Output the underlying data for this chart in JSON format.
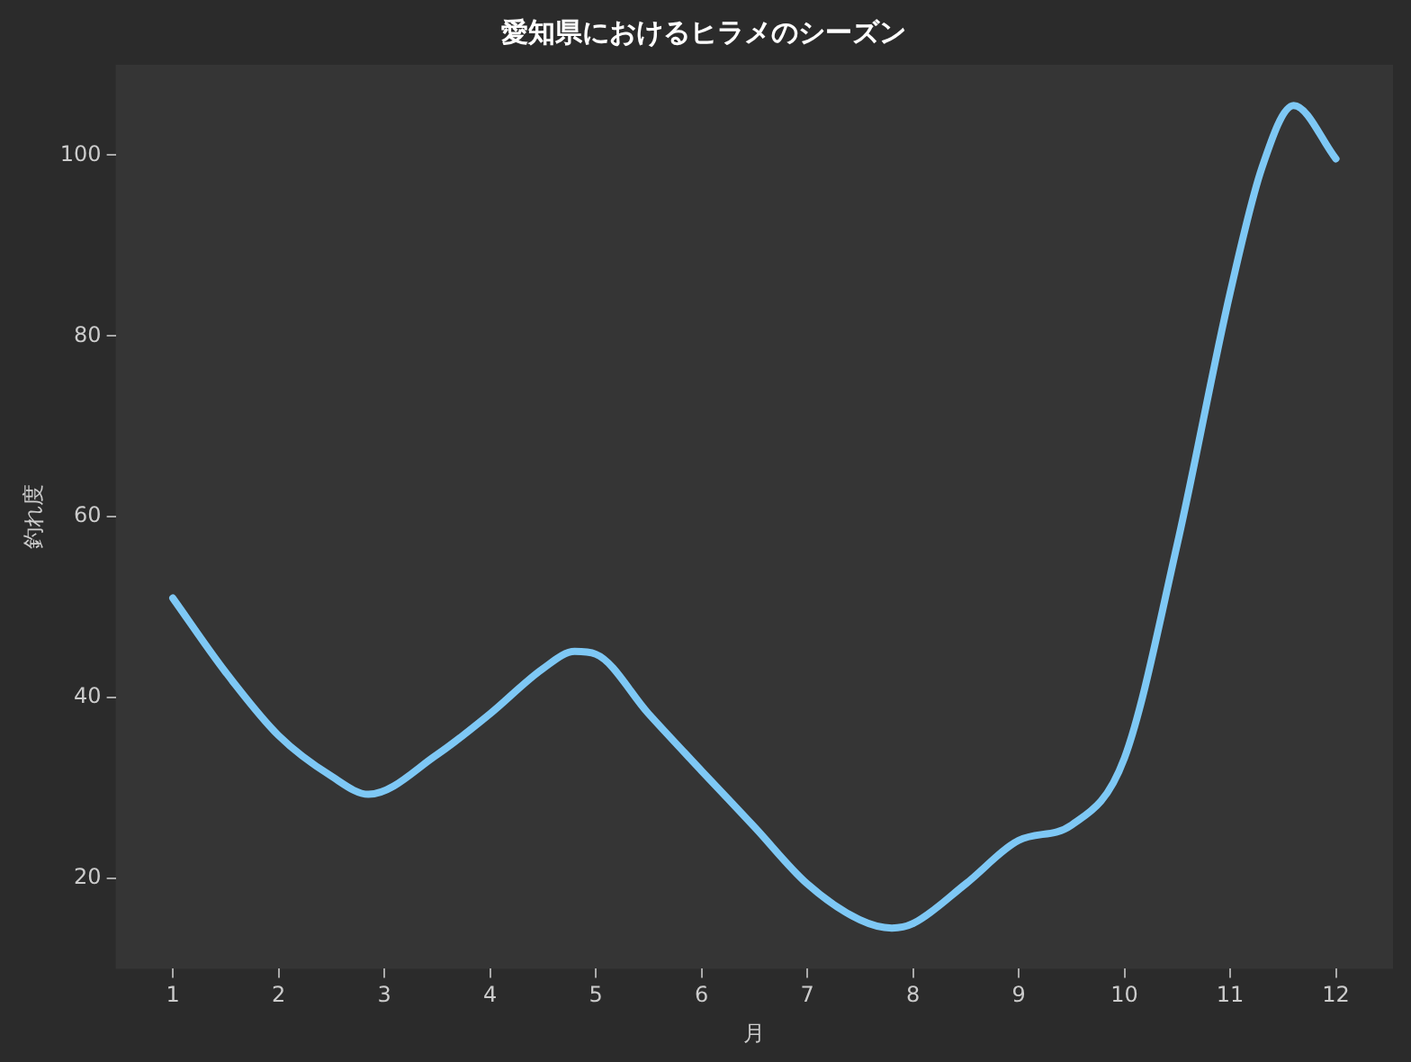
{
  "chart_data": {
    "type": "line",
    "title": "愛知県におけるヒラメのシーズン",
    "xlabel": "月",
    "ylabel": "釣れ度",
    "x": [
      1,
      1.5,
      2,
      2.5,
      2.85,
      3.5,
      4,
      4.5,
      4.8,
      5,
      5.5,
      6,
      6.5,
      7,
      7.5,
      7.8,
      8,
      8.5,
      9,
      9.5,
      10,
      10.5,
      11,
      11.3,
      11.6,
      12
    ],
    "series": [
      {
        "color": "#7ec8f5",
        "values": [
          51,
          42.8,
          35.8,
          31.3,
          29.3,
          33.7,
          38.2,
          43.2,
          45.1,
          44.8,
          38.2,
          31.9,
          25.7,
          19.4,
          15.4,
          14.5,
          15,
          19.4,
          24.2,
          25.9,
          33.3,
          57,
          84.8,
          98.6,
          105.5,
          99.6
        ]
      }
    ],
    "xlim": [
      0.46,
      12.54
    ],
    "xticks": [
      1,
      2,
      3,
      4,
      5,
      6,
      7,
      8,
      9,
      10,
      11,
      12
    ],
    "ylim": [
      10,
      110
    ],
    "yticks": [
      20,
      40,
      60,
      80,
      100
    ],
    "grid": false,
    "legend": false,
    "marker": "none",
    "line_style": "solid"
  }
}
